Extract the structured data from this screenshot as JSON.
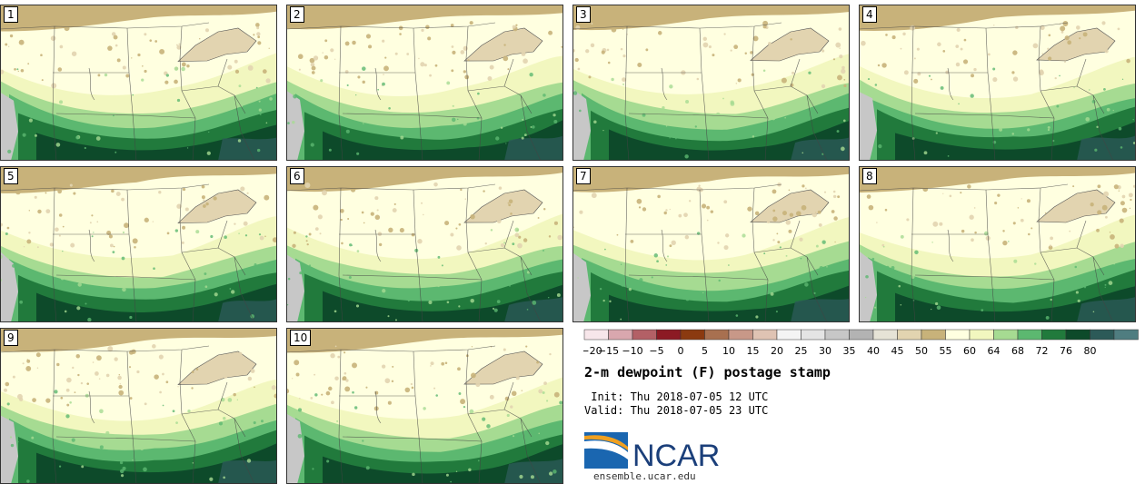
{
  "panels": [
    "1",
    "2",
    "3",
    "4",
    "5",
    "6",
    "7",
    "8",
    "9",
    "10"
  ],
  "colorbar": {
    "ticks": [
      "−20",
      "−15",
      "−10",
      "−5",
      "0",
      "5",
      "10",
      "15",
      "20",
      "25",
      "30",
      "35",
      "40",
      "45",
      "50",
      "55",
      "60",
      "64",
      "68",
      "72",
      "76",
      "80"
    ],
    "colors": [
      "#f7e6ea",
      "#d9a7ae",
      "#b36066",
      "#8c1a24",
      "#8b3a10",
      "#a87050",
      "#c89888",
      "#dfc3b3",
      "#f4f4f4",
      "#e4e4e4",
      "#c7c7c7",
      "#b3b3b3",
      "#e6e3d6",
      "#e2d4b0",
      "#c8b27a",
      "#ffffe0",
      "#f2f7bf",
      "#a6db92",
      "#5cb870",
      "#217a3c",
      "#0d4a2a",
      "#2c5a58",
      "#4f7d80"
    ]
  },
  "title": "2-m dewpoint (F) postage stamp",
  "init_line": " Init: Thu 2018-07-05 12 UTC",
  "valid_line": "Valid: Thu 2018-07-05 23 UTC",
  "logo_text": "NCAR",
  "url": "ensemble.ucar.edu"
}
